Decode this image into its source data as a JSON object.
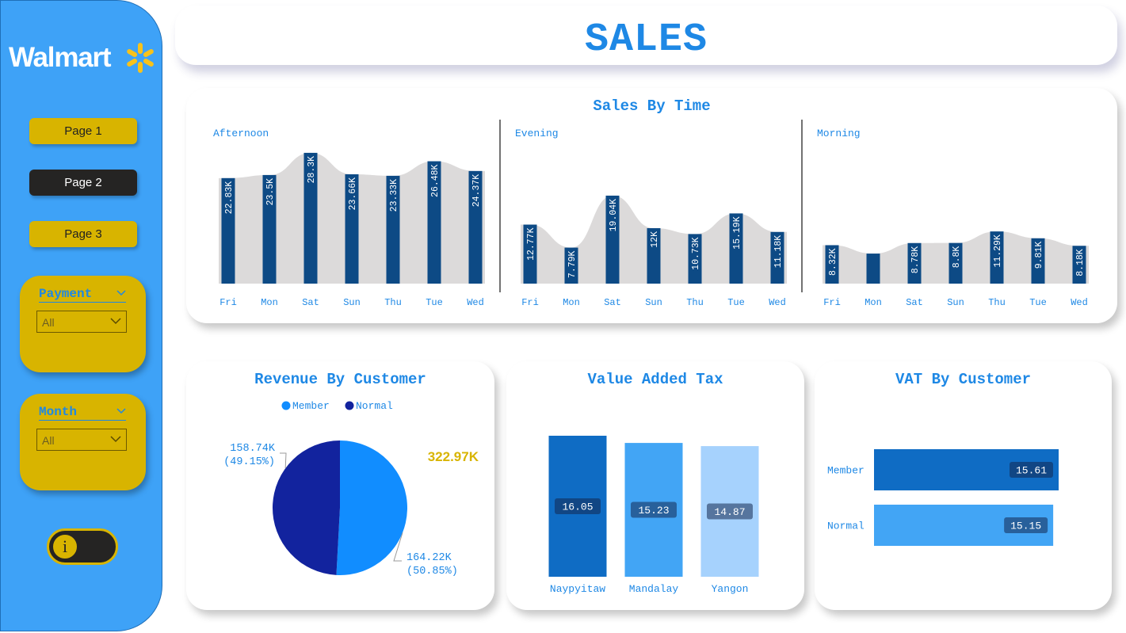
{
  "brand": {
    "name": "Walmart",
    "spark_color": "#f7c21b"
  },
  "nav": {
    "pages": [
      {
        "label": "Page 1",
        "active": false
      },
      {
        "label": "Page 2",
        "active": true
      },
      {
        "label": "Page 3",
        "active": false
      }
    ]
  },
  "filters": {
    "payment": {
      "title": "Payment",
      "value": "All"
    },
    "month": {
      "title": "Month",
      "value": "All"
    }
  },
  "info_toggle": {
    "icon": "info-icon",
    "glyph": "i"
  },
  "header": {
    "title": "SALES"
  },
  "colors": {
    "accent": "#1e88e5",
    "sidebar": "#3ea2f7",
    "yellow": "#d8b400",
    "dark": "#252423",
    "bar_navy": "#0d4a85",
    "area_gray": "#dcdada"
  },
  "chart_data": [
    {
      "type": "bar",
      "title": "Sales By Time",
      "categories": [
        "Fri",
        "Mon",
        "Sat",
        "Sun",
        "Thu",
        "Tue",
        "Wed"
      ],
      "series": [
        {
          "name": "Afternoon",
          "values": [
            22830,
            23500,
            28300,
            23660,
            23330,
            26480,
            24370
          ],
          "labels": [
            "22.83K",
            "23.5K",
            "28.3K",
            "23.66K",
            "23.33K",
            "26.48K",
            "24.37K"
          ]
        },
        {
          "name": "Evening",
          "values": [
            12770,
            7790,
            19040,
            12000,
            10730,
            15190,
            11180
          ],
          "labels": [
            "12.77K",
            "7.79K",
            "19.04K",
            "12K",
            "10.73K",
            "15.19K",
            "11.18K"
          ]
        },
        {
          "name": "Morning",
          "values": [
            8320,
            6500,
            8780,
            8800,
            11290,
            9810,
            8180
          ],
          "labels": [
            "8.32K",
            "",
            "8.78K",
            "8.8K",
            "11.29K",
            "9.81K",
            "8.18K"
          ]
        }
      ],
      "ylim": [
        0,
        30000
      ]
    },
    {
      "type": "pie",
      "title": "Revenue By Customer",
      "categories": [
        "Member",
        "Normal"
      ],
      "values": [
        164.22,
        158.74
      ],
      "value_labels": [
        "164.22K",
        "158.74K"
      ],
      "percent_labels": [
        "(50.85%)",
        "(49.15%)"
      ],
      "colors": [
        "#118dff",
        "#12239e"
      ],
      "total_label": "322.97K",
      "legend": "top-center"
    },
    {
      "type": "bar",
      "title": "Value Added Tax",
      "categories": [
        "Naypyitaw",
        "Mandalay",
        "Yangon"
      ],
      "values": [
        16.05,
        15.23,
        14.87
      ],
      "value_labels": [
        "16.05",
        "15.23",
        "14.87"
      ],
      "colors": [
        "#0f6cc4",
        "#42a5f5",
        "#a6d2fd"
      ],
      "ylim": [
        0,
        17
      ]
    },
    {
      "type": "bar",
      "orientation": "horizontal",
      "title": "VAT By Customer",
      "categories": [
        "Member",
        "Normal"
      ],
      "values": [
        15.61,
        15.15
      ],
      "value_labels": [
        "15.61",
        "15.15"
      ],
      "colors": [
        "#0f6cc4",
        "#42a5f5"
      ],
      "xlim": [
        0,
        16.5
      ]
    }
  ]
}
